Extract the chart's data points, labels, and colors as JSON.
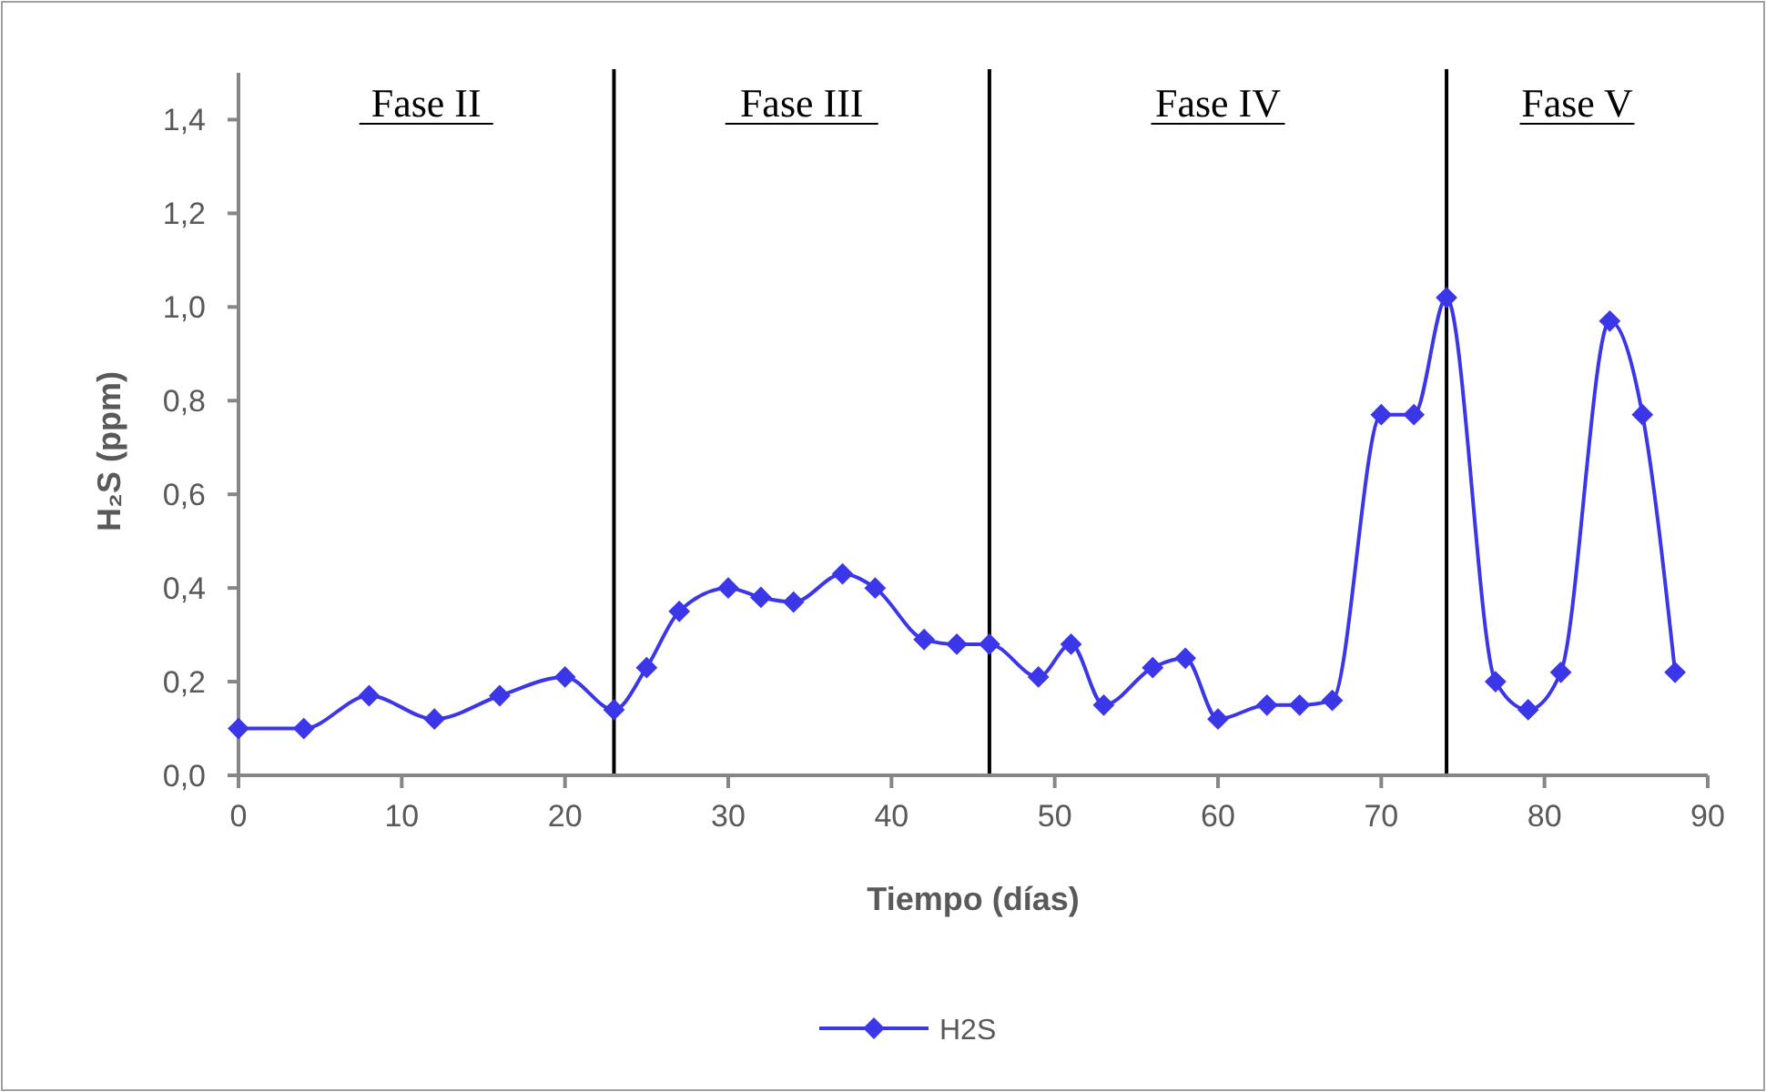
{
  "chart_data": {
    "type": "line",
    "xlabel": "Tiempo (días)",
    "ylabel": "H₂S (ppm)",
    "xlim": [
      0,
      90
    ],
    "xticks": [
      0,
      10,
      20,
      30,
      40,
      50,
      60,
      70,
      80,
      90
    ],
    "ylim": [
      0,
      1.5
    ],
    "yticks": [
      {
        "value": 0,
        "label": "0,0"
      },
      {
        "value": 0.2,
        "label": "0,2"
      },
      {
        "value": 0.4,
        "label": "0,4"
      },
      {
        "value": 0.6,
        "label": "0,6"
      },
      {
        "value": 0.8,
        "label": "0,8"
      },
      {
        "value": 1.0,
        "label": "1,0"
      },
      {
        "value": 1.2,
        "label": "1,2"
      },
      {
        "value": 1.4,
        "label": "1,4"
      }
    ],
    "x": [
      0,
      4,
      8,
      12,
      16,
      20,
      23,
      25,
      27,
      30,
      32,
      34,
      37,
      39,
      42,
      44,
      46,
      49,
      51,
      53,
      56,
      58,
      60,
      63,
      65,
      67,
      70,
      72,
      74,
      77,
      79,
      81,
      84,
      86,
      88
    ],
    "series": [
      {
        "name": "H2S",
        "color": "#3b36e8",
        "values": [
          0.1,
          0.1,
          0.17,
          0.12,
          0.17,
          0.21,
          0.14,
          0.23,
          0.35,
          0.4,
          0.38,
          0.37,
          0.43,
          0.4,
          0.29,
          0.28,
          0.28,
          0.21,
          0.28,
          0.15,
          0.23,
          0.25,
          0.12,
          0.15,
          0.15,
          0.16,
          0.77,
          0.77,
          1.02,
          0.2,
          0.14,
          0.22,
          0.97,
          0.77,
          0.22
        ]
      }
    ],
    "ref_lines": [
      {
        "axis": "x",
        "value": 23,
        "color": "#000000"
      },
      {
        "axis": "x",
        "value": 46,
        "color": "#000000"
      },
      {
        "axis": "x",
        "value": 74,
        "color": "#000000"
      }
    ],
    "annotations": [
      "Fase II",
      "Fase III",
      "Fase IV",
      "Fase V"
    ],
    "marker": "diamond",
    "line_style": "solid",
    "grid": false,
    "legend": "bottom"
  }
}
